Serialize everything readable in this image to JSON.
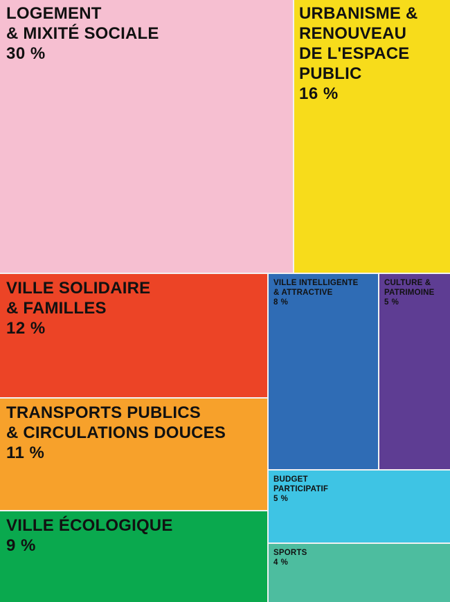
{
  "chart_data": {
    "type": "treemap",
    "unit": "%",
    "items": [
      {
        "label": "LOGEMENT\n& MIXITÉ SOCIALE",
        "value": 30,
        "value_label": "30 %",
        "color": "#F6BFD1"
      },
      {
        "label": "URBANISME &\nRENOUVEAU\nDE L'ESPACE\nPUBLIC",
        "value": 16,
        "value_label": "16 %",
        "color": "#F7DC1B"
      },
      {
        "label": "VILLE SOLIDAIRE\n& FAMILLES",
        "value": 12,
        "value_label": "12 %",
        "color": "#EC4426"
      },
      {
        "label": "TRANSPORTS PUBLICS\n& CIRCULATIONS DOUCES",
        "value": 11,
        "value_label": "11 %",
        "color": "#F7A12B"
      },
      {
        "label": "VILLE ÉCOLOGIQUE",
        "value": 9,
        "value_label": "9 %",
        "color": "#0AA94E"
      },
      {
        "label": "VILLE INTELLIGENTE\n& ATTRACTIVE",
        "value": 8,
        "value_label": "8 %",
        "color": "#2F6CB5"
      },
      {
        "label": "CULTURE &\nPATRIMOINE",
        "value": 5,
        "value_label": "5 %",
        "color": "#5E3D93"
      },
      {
        "label": "BUDGET\nPARTICIPATIF",
        "value": 5,
        "value_label": "5 %",
        "color": "#3EC4E4"
      },
      {
        "label": "SPORTS",
        "value": 4,
        "value_label": "4 %",
        "color": "#4DBD9F"
      }
    ]
  }
}
